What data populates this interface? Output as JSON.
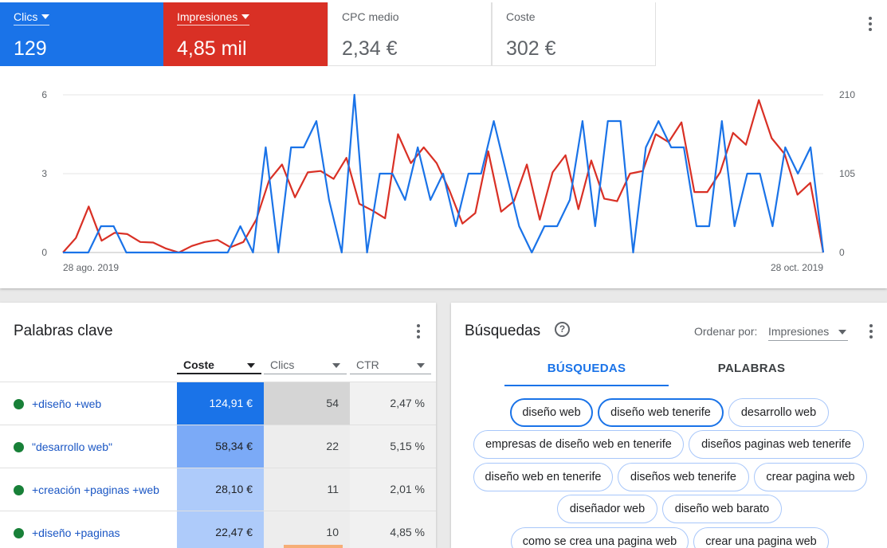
{
  "performance": {
    "metrics": [
      {
        "label": "Clics",
        "value": "129"
      },
      {
        "label": "Impresiones",
        "value": "4,85 mil"
      },
      {
        "label": "CPC medio",
        "value": "2,34 €"
      },
      {
        "label": "Coste",
        "value": "302 €"
      }
    ],
    "menu_icon": "more-vert-icon"
  },
  "chart_data": {
    "type": "line",
    "x_start_label": "28 ago. 2019",
    "x_end_label": "28 oct. 2019",
    "y_left_ticks": [
      "6",
      "3",
      "0"
    ],
    "y_right_ticks": [
      "210",
      "105",
      "0"
    ],
    "ylim_left": [
      0,
      6
    ],
    "ylim_right": [
      0,
      210
    ],
    "grid": true,
    "series": [
      {
        "name": "Clics",
        "axis": "left",
        "color": "#1a73e8",
        "values": [
          0,
          0,
          0,
          1,
          1,
          0,
          0,
          0,
          0,
          0,
          0,
          0,
          0,
          0,
          1,
          0,
          4,
          0,
          4,
          4,
          5,
          2,
          0,
          6,
          0,
          3,
          3,
          2,
          4,
          2,
          3,
          1,
          3,
          3,
          5,
          3,
          1,
          0,
          1,
          1,
          2,
          5,
          1,
          5,
          5,
          0,
          4,
          5,
          4,
          4,
          1,
          1,
          5,
          1,
          3,
          3,
          1,
          4,
          3,
          4,
          0
        ]
      },
      {
        "name": "Impresiones",
        "axis": "left",
        "color": "#d93025",
        "values": [
          0,
          0.55,
          1.75,
          0.45,
          0.75,
          0.7,
          0.4,
          0.38,
          0.15,
          0,
          0.25,
          0.4,
          0.48,
          0.2,
          0.4,
          1.25,
          2.75,
          3.35,
          2.1,
          3.05,
          3.1,
          2.8,
          3.6,
          1.85,
          1.6,
          1.3,
          4.5,
          3.4,
          4,
          3.4,
          2.35,
          1.1,
          1.5,
          3.85,
          1.55,
          1.95,
          3.35,
          1.25,
          3.05,
          3.7,
          1.65,
          3.5,
          2.05,
          1.95,
          3,
          3.1,
          4.5,
          4.2,
          4.95,
          2.3,
          2.3,
          3.05,
          4.55,
          4.1,
          5.8,
          4.35,
          3.75,
          2.2,
          2.65,
          0
        ]
      }
    ]
  },
  "keywords": {
    "title": "Palabras clave",
    "menu_icon": "more-vert-icon",
    "columns": [
      "Coste",
      "Clics",
      "CTR"
    ],
    "sorted_column": "Coste",
    "rows": [
      {
        "keyword": "+diseño +web",
        "coste": "124,91 €",
        "clics": "54",
        "ctr": "2,47 %",
        "status_color": "#188038"
      },
      {
        "keyword": "\"desarrollo web\"",
        "coste": "58,34 €",
        "clics": "22",
        "ctr": "5,15 %",
        "status_color": "#188038"
      },
      {
        "keyword": "+creación +paginas +web",
        "coste": "28,10 €",
        "clics": "11",
        "ctr": "2,01 %",
        "status_color": "#188038"
      },
      {
        "keyword": "+diseño +paginas",
        "coste": "22,47 €",
        "clics": "10",
        "ctr": "4,85 %",
        "status_color": "#188038"
      }
    ]
  },
  "searches": {
    "title": "Búsquedas",
    "help_icon": "help-circle-icon",
    "help_glyph": "?",
    "sort_label": "Ordenar por:",
    "sort_value": "Impresiones",
    "menu_icon": "more-vert-icon",
    "tabs": [
      "BÚSQUEDAS",
      "PALABRAS"
    ],
    "active_tab": "BÚSQUEDAS",
    "chips": [
      "diseño web",
      "diseño web tenerife",
      "desarrollo web",
      "empresas de diseño web en tenerife",
      "diseños paginas web tenerife",
      "diseño web en tenerife",
      "diseños web tenerife",
      "crear pagina web",
      "diseñador web",
      "diseño web barato",
      "como se crea una pagina web",
      "crear una pagina web"
    ]
  }
}
